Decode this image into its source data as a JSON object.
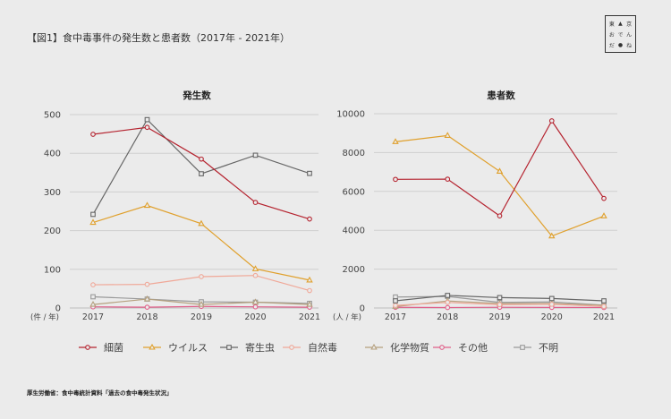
{
  "header": {
    "title": "【図1】食中毒事件の発生数と患者数（2017年 - 2021年）"
  },
  "logo": {
    "cells": [
      "東",
      "▲",
      "京",
      "お",
      "で",
      "ん",
      "だ",
      "●",
      "ね"
    ]
  },
  "source": "厚生労働省：食中毒統計資料「過去の食中毒発生状況」",
  "chart_data": [
    {
      "type": "line",
      "title": "発生数",
      "ylabel": "(件 / 年)",
      "categories": [
        "2017",
        "2018",
        "2019",
        "2020",
        "2021"
      ],
      "ylim": [
        0,
        500
      ],
      "yticks": [
        0,
        100,
        200,
        300,
        400,
        500
      ],
      "grid": true,
      "series": [
        {
          "name": "細菌",
          "values": [
            449,
            467,
            385,
            273,
            230
          ]
        },
        {
          "name": "ウイルス",
          "values": [
            221,
            265,
            218,
            101,
            72
          ]
        },
        {
          "name": "寄生虫",
          "values": [
            242,
            487,
            347,
            395,
            348
          ]
        },
        {
          "name": "自然毒",
          "values": [
            60,
            61,
            81,
            84,
            45
          ]
        },
        {
          "name": "化学物質",
          "values": [
            9,
            23,
            9,
            15,
            9
          ]
        },
        {
          "name": "その他",
          "values": [
            3,
            2,
            4,
            3,
            2
          ]
        },
        {
          "name": "不明",
          "values": [
            29,
            23,
            16,
            15,
            12
          ]
        }
      ]
    },
    {
      "type": "line",
      "title": "患者数",
      "ylabel": "(人 / 年)",
      "categories": [
        "2017",
        "2018",
        "2019",
        "2020",
        "2021"
      ],
      "ylim": [
        0,
        10000
      ],
      "yticks": [
        0,
        2000,
        4000,
        6000,
        8000,
        10000
      ],
      "grid": true,
      "series": [
        {
          "name": "細菌",
          "values": [
            6621,
            6633,
            4739,
            9632,
            5638
          ]
        },
        {
          "name": "ウイルス",
          "values": [
            8555,
            8876,
            7031,
            3701,
            4733
          ]
        },
        {
          "name": "寄生虫",
          "values": [
            368,
            647,
            534,
            488,
            368
          ]
        },
        {
          "name": "自然毒",
          "values": [
            134,
            286,
            172,
            192,
            82
          ]
        },
        {
          "name": "化学物質",
          "values": [
            76,
            361,
            229,
            234,
            143
          ]
        },
        {
          "name": "その他",
          "values": [
            33,
            23,
            37,
            30,
            25
          ]
        },
        {
          "name": "不明",
          "values": [
            565,
            593,
            288,
            311,
            143
          ]
        }
      ]
    }
  ],
  "legend": {
    "placement": "bottom",
    "items": [
      {
        "label": "細菌",
        "color": "#b5232f",
        "marker": "circle"
      },
      {
        "label": "ウイルス",
        "color": "#e0a02c",
        "marker": "triangle"
      },
      {
        "label": "寄生虫",
        "color": "#666666",
        "marker": "square"
      },
      {
        "label": "自然毒",
        "color": "#f0a898",
        "marker": "circle"
      },
      {
        "label": "化学物質",
        "color": "#b5a07e",
        "marker": "triangle"
      },
      {
        "label": "その他",
        "color": "#e0608a",
        "marker": "circle"
      },
      {
        "label": "不明",
        "color": "#9a9a9a",
        "marker": "square"
      }
    ]
  }
}
